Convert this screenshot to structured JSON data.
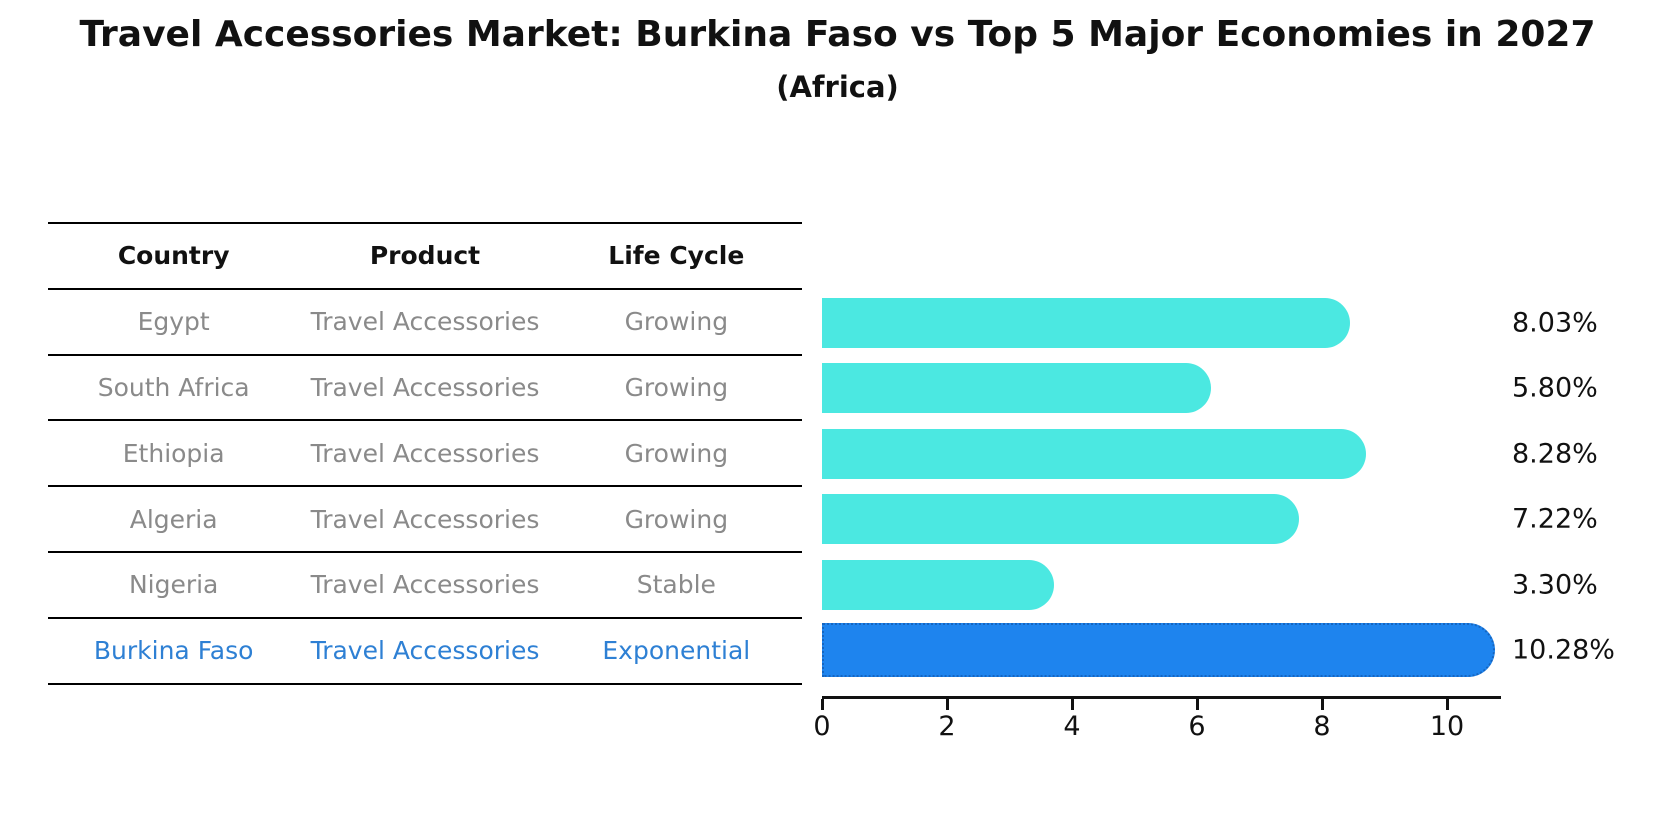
{
  "title": "Travel Accessories Market: Burkina Faso vs Top 5 Major Economies in 2027",
  "subtitle": "(Africa)",
  "table": {
    "headers": [
      "Country",
      "Product",
      "Life Cycle"
    ],
    "rows": [
      {
        "country": "Egypt",
        "product": "Travel Accessories",
        "life_cycle": "Growing",
        "highlighted": false
      },
      {
        "country": "South Africa",
        "product": "Travel Accessories",
        "life_cycle": "Growing",
        "highlighted": false
      },
      {
        "country": "Ethiopia",
        "product": "Travel Accessories",
        "life_cycle": "Growing",
        "highlighted": false
      },
      {
        "country": "Algeria",
        "product": "Travel Accessories",
        "life_cycle": "Growing",
        "highlighted": false
      },
      {
        "country": "Nigeria",
        "product": "Travel Accessories",
        "life_cycle": "Stable",
        "highlighted": false
      },
      {
        "country": "Burkina Faso",
        "product": "Travel Accessories",
        "life_cycle": "Exponential",
        "highlighted": true
      }
    ]
  },
  "chart_data": {
    "type": "bar",
    "orientation": "horizontal",
    "title": "Travel Accessories Market: Burkina Faso vs Top 5 Major Economies in 2027 (Africa)",
    "categories": [
      "Egypt",
      "South Africa",
      "Ethiopia",
      "Algeria",
      "Nigeria",
      "Burkina Faso"
    ],
    "values": [
      8.03,
      5.8,
      8.28,
      7.22,
      3.3,
      10.28
    ],
    "value_labels": [
      "8.03%",
      "5.80%",
      "8.28%",
      "7.22%",
      "3.30%",
      "10.28%"
    ],
    "x_ticks": [
      0,
      2,
      4,
      6,
      8,
      10
    ],
    "xlim": [
      0,
      10.85
    ],
    "grid": false,
    "legend": false,
    "bar_color": "#4BE8E1",
    "highlight_index": 5,
    "highlight_color": "#1E84EE",
    "highlight_border_color": "#1565C0"
  },
  "colors": {
    "title_text": "#111111",
    "table_header_text": "#111111",
    "table_body_text": "#8a8a8a",
    "highlight_row_text": "#2E80D4",
    "axis": "#111111"
  }
}
